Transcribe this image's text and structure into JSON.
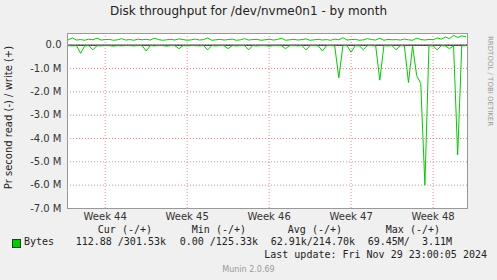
{
  "chart_data": {
    "type": "line",
    "title": "Disk throughput for /dev/nvme0n1 - by month",
    "y_label": "Pr second read (-) / write (+)",
    "x": [
      43.55,
      43.6,
      43.65,
      43.7,
      43.75,
      43.8,
      43.85,
      43.9,
      43.95,
      44,
      44.05,
      44.1,
      44.15,
      44.2,
      44.25,
      44.3,
      44.35,
      44.4,
      44.45,
      44.5,
      44.55,
      44.6,
      44.65,
      44.7,
      44.75,
      44.8,
      44.85,
      44.9,
      44.95,
      45,
      45.05,
      45.1,
      45.15,
      45.2,
      45.25,
      45.3,
      45.35,
      45.4,
      45.45,
      45.5,
      45.55,
      45.6,
      45.65,
      45.7,
      45.75,
      45.8,
      45.85,
      45.9,
      45.95,
      46,
      46.05,
      46.1,
      46.15,
      46.2,
      46.25,
      46.3,
      46.35,
      46.4,
      46.45,
      46.5,
      46.55,
      46.6,
      46.65,
      46.7,
      46.75,
      46.8,
      46.85,
      46.9,
      46.95,
      47,
      47.05,
      47.1,
      47.15,
      47.2,
      47.25,
      47.3,
      47.35,
      47.4,
      47.45,
      47.5,
      47.55,
      47.6,
      47.65,
      47.7,
      47.75,
      47.8,
      47.85,
      47.9,
      47.95,
      48,
      48.05,
      48.1,
      48.15,
      48.2,
      48.25,
      48.3,
      48.35,
      48.4
    ],
    "xlim": [
      43.54,
      48.42
    ],
    "xticks": [
      {
        "value": 44,
        "label": "Week 44"
      },
      {
        "value": 45,
        "label": "Week 45"
      },
      {
        "value": 46,
        "label": "Week 46"
      },
      {
        "value": 47,
        "label": "Week 47"
      },
      {
        "value": 48,
        "label": "Week 48"
      }
    ],
    "ylim": [
      -7000000,
      500000
    ],
    "yticks": [
      {
        "value": 0,
        "label": "0.0"
      },
      {
        "value": -1000000,
        "label": "-1.0 M"
      },
      {
        "value": -2000000,
        "label": "-2.0 M"
      },
      {
        "value": -3000000,
        "label": "-3.0 M"
      },
      {
        "value": -4000000,
        "label": "-4.0 M"
      },
      {
        "value": -5000000,
        "label": "-5.0 M"
      },
      {
        "value": -6000000,
        "label": "-6.0 M"
      },
      {
        "value": -7000000,
        "label": "-7.0 M"
      }
    ],
    "grid": true,
    "series": [
      {
        "name": "Bytes",
        "color": "#00cc00",
        "values": [
          230000,
          310000,
          220000,
          240000,
          210000,
          260000,
          230000,
          300000,
          220000,
          240000,
          250000,
          210000,
          230000,
          280000,
          220000,
          240000,
          210000,
          260000,
          230000,
          250000,
          220000,
          300000,
          240000,
          210000,
          230000,
          250000,
          220000,
          270000,
          240000,
          210000,
          230000,
          260000,
          220000,
          240000,
          310000,
          210000,
          230000,
          250000,
          220000,
          240000,
          260000,
          210000,
          230000,
          280000,
          220000,
          240000,
          250000,
          210000,
          230000,
          260000,
          220000,
          240000,
          300000,
          210000,
          230000,
          250000,
          220000,
          240000,
          270000,
          210000,
          230000,
          250000,
          220000,
          240000,
          210000,
          260000,
          230000,
          320000,
          220000,
          240000,
          250000,
          210000,
          230000,
          280000,
          240000,
          220000,
          300000,
          210000,
          250000,
          230000,
          240000,
          220000,
          260000,
          230000,
          210000,
          300000,
          240000,
          220000,
          250000,
          230000,
          310000,
          260000,
          350000,
          280000,
          420000,
          330000,
          400000,
          360000
        ],
        "read_values": [
          -20000,
          -30000,
          -20000,
          -350000,
          -30000,
          -20000,
          -200000,
          -20000,
          -30000,
          -20000,
          -20000,
          -40000,
          -20000,
          -30000,
          -20000,
          -20000,
          -30000,
          -20000,
          -20000,
          -250000,
          -20000,
          -30000,
          -20000,
          -20000,
          -40000,
          -20000,
          -20000,
          -150000,
          -20000,
          -30000,
          -20000,
          -20000,
          -30000,
          -20000,
          -200000,
          -20000,
          -30000,
          -20000,
          -20000,
          -150000,
          -20000,
          -30000,
          -20000,
          -20000,
          -200000,
          -20000,
          -30000,
          -20000,
          -20000,
          -40000,
          -20000,
          -20000,
          -30000,
          -150000,
          -20000,
          -20000,
          -30000,
          -20000,
          -200000,
          -20000,
          -20000,
          -30000,
          -250000,
          -20000,
          -20000,
          -30000,
          -1400000,
          -20000,
          -20000,
          -300000,
          -20000,
          -30000,
          -200000,
          -20000,
          -20000,
          -30000,
          -1500000,
          -20000,
          -30000,
          -20000,
          -200000,
          -20000,
          -30000,
          -1600000,
          -30000,
          -1300000,
          -1650000,
          -6000000,
          -20000,
          -30000,
          -200000,
          -20000,
          -30000,
          -150000,
          -20000,
          -4700000,
          -30000,
          -20000
        ]
      }
    ],
    "stats": {
      "headers": [
        "Cur (-/+)",
        "Min (-/+)",
        "Avg (-/+)",
        "Max (-/+)"
      ],
      "values": [
        "112.88 /301.53k",
        "0.00 /125.33k",
        "62.91k/214.70k",
        "69.45M/  3.11M"
      ]
    },
    "last_update": "Last update: Fri Nov 29 23:00:05 2024",
    "version": "Munin 2.0.69",
    "watermark": "RRDTOOL / TOBI OETIKER"
  }
}
